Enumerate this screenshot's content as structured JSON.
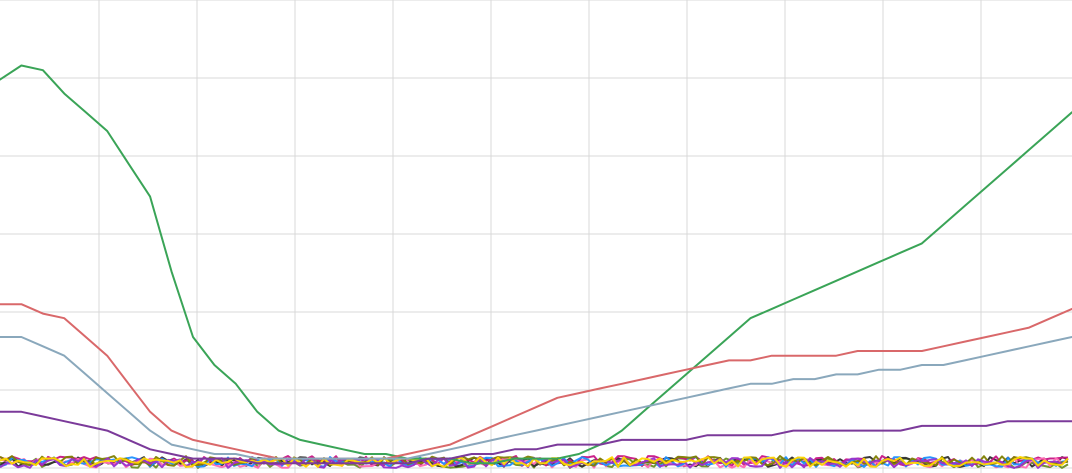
{
  "chart_data": {
    "type": "line",
    "title": "",
    "xlabel": "",
    "ylabel": "",
    "grid": true,
    "legend": "none",
    "ylim": [
      0,
      100
    ],
    "x": [
      0,
      4,
      8,
      12,
      16,
      20,
      24,
      28,
      32,
      36,
      40,
      44,
      48,
      52,
      56,
      60,
      64,
      68,
      72,
      76,
      80,
      84,
      88,
      92,
      96,
      100,
      104,
      108,
      112,
      116,
      120,
      124,
      128,
      132,
      136,
      140,
      144,
      148,
      152,
      156,
      160,
      164,
      168,
      172,
      176,
      180,
      184,
      188,
      192,
      196,
      200
    ],
    "series": [
      {
        "color": "#3aa457",
        "values": [
          83,
          86,
          85,
          80,
          76,
          72,
          65,
          58,
          42,
          28,
          22,
          18,
          12,
          8,
          6,
          5,
          4,
          3,
          3,
          2,
          2,
          2,
          1,
          1,
          2,
          2,
          2,
          3,
          5,
          8,
          12,
          16,
          20,
          24,
          28,
          32,
          34,
          36,
          38,
          40,
          42,
          44,
          46,
          48,
          52,
          56,
          60,
          64,
          68,
          72,
          76
        ]
      },
      {
        "color": "#d9686a",
        "values": [
          35,
          35,
          33,
          32,
          28,
          24,
          18,
          12,
          8,
          6,
          5,
          4,
          3,
          2,
          2,
          2,
          2,
          2,
          2,
          3,
          4,
          5,
          7,
          9,
          11,
          13,
          15,
          16,
          17,
          18,
          19,
          20,
          21,
          22,
          23,
          23,
          24,
          24,
          24,
          24,
          25,
          25,
          25,
          25,
          26,
          27,
          28,
          29,
          30,
          32,
          34
        ]
      },
      {
        "color": "#8aa8bc",
        "values": [
          28,
          28,
          26,
          24,
          20,
          16,
          12,
          8,
          5,
          4,
          3,
          3,
          2,
          2,
          2,
          2,
          2,
          2,
          2,
          2,
          3,
          4,
          5,
          6,
          7,
          8,
          9,
          10,
          11,
          12,
          13,
          14,
          15,
          16,
          17,
          18,
          18,
          19,
          19,
          20,
          20,
          21,
          21,
          22,
          22,
          23,
          24,
          25,
          26,
          27,
          28
        ]
      },
      {
        "color": "#7b3a9a",
        "values": [
          12,
          12,
          11,
          10,
          9,
          8,
          6,
          4,
          3,
          2,
          2,
          2,
          1,
          1,
          1,
          1,
          1,
          1,
          1,
          1,
          2,
          2,
          3,
          3,
          4,
          4,
          5,
          5,
          5,
          6,
          6,
          6,
          6,
          7,
          7,
          7,
          7,
          8,
          8,
          8,
          8,
          8,
          8,
          9,
          9,
          9,
          9,
          10,
          10,
          10,
          10
        ]
      }
    ],
    "noise_series_colors": [
      "#6b8e23",
      "#2f2f2f",
      "#c71585",
      "#ff69b4",
      "#1e90ff",
      "#808000",
      "#9932cc",
      "#ffd700"
    ]
  }
}
